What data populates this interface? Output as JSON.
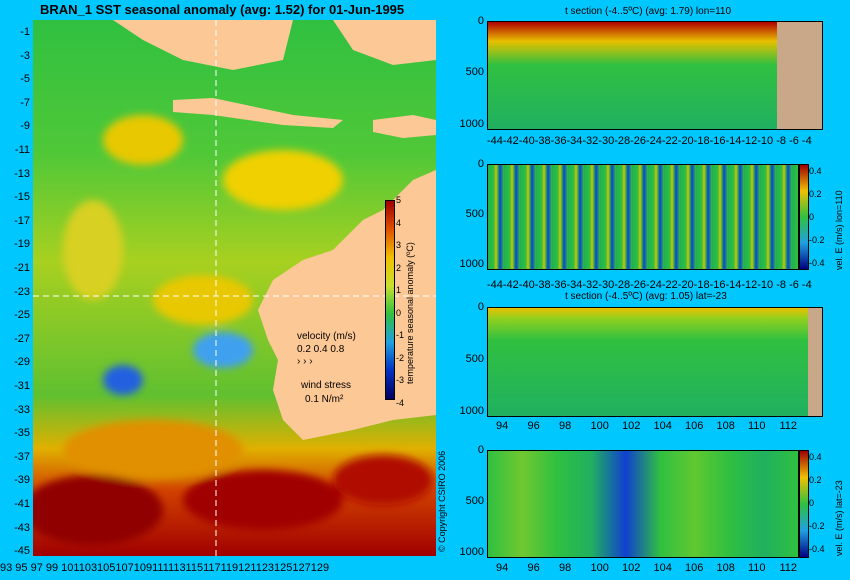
{
  "title": "BRAN_1  SST seasonal anomaly (avg: 1.52) for 01-Jun-1995",
  "map": {
    "lat_ticks": [
      "-1",
      "-3",
      "-5",
      "-7",
      "-9",
      "-11",
      "-13",
      "-15",
      "-17",
      "-19",
      "-21",
      "-23",
      "-25",
      "-27",
      "-29",
      "-31",
      "-33",
      "-35",
      "-37",
      "-39",
      "-41",
      "-43",
      "-45"
    ],
    "lon_ticks": [
      "93",
      "95",
      "97",
      "99",
      "101",
      "103",
      "105",
      "107",
      "109",
      "111",
      "113",
      "115",
      "117",
      "119",
      "121",
      "123",
      "125",
      "127",
      "129"
    ],
    "lon_ticks_text": "93 95 97 99 101103105107109111113115117119121123125127129",
    "colorbar_label": "temperature seasonal anomaly (ºC)",
    "colorbar_ticks": [
      "5",
      "4",
      "3",
      "2",
      "1",
      "0",
      "-1",
      "-2",
      "-3",
      "-4"
    ],
    "velocity_label": "velocity (m/s)",
    "velocity_scale": "0.2 0.4 0.8",
    "wind_label": "wind stress",
    "wind_scale": "0.1 N/m²",
    "copyright": "© Copyright CSIRO 2006"
  },
  "panels": {
    "p1_title": "t section (-4..5ºC) (avg: 1.79) lon=110",
    "p1_xticks": [
      "-44",
      "-42",
      "-40",
      "-38",
      "-36",
      "-34",
      "-32",
      "-30",
      "-28",
      "-26",
      "-24",
      "-22",
      "-20",
      "-18",
      "-16",
      "-14",
      "-12",
      "-10",
      "-8",
      "-6",
      "-4"
    ],
    "p1_xticks_text": "-44-42-40-38-36-34-32-30-28-26-24-22-20-18-16-14-12-10 -8  -6  -4",
    "depth_ticks": [
      "0",
      "500",
      "1000"
    ],
    "p2_label": "vel. E (m/s) lon=110",
    "p2_cbticks": [
      "0.4",
      "0.2",
      "0",
      "-0.2",
      "-0.4"
    ],
    "p3_title": "t section (-4..5ºC) (avg: 1.05) lat=-23",
    "p3_xticks": [
      "94",
      "96",
      "98",
      "100",
      "102",
      "104",
      "106",
      "108",
      "110",
      "112"
    ],
    "p4_label": "vel. E (m/s) lat=-23",
    "p4_cbticks": [
      "0.4",
      "0.2",
      "0",
      "-0.2",
      "-0.4"
    ]
  },
  "colors": {
    "background": "#00c8ff",
    "land": "#fcc896",
    "section_land": "#c8a888",
    "warm": "#a00000",
    "mid": "#22c050",
    "cool": "#0a3cc8"
  }
}
